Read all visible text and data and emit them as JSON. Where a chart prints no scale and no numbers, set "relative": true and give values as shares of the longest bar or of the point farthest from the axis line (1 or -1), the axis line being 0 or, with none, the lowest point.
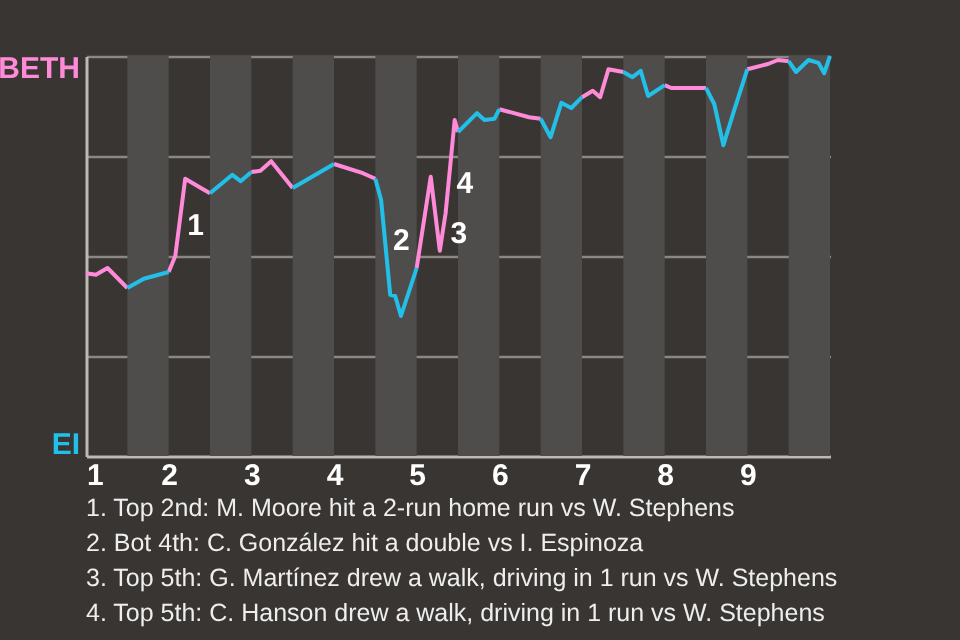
{
  "chart_data": {
    "type": "line",
    "relative": true,
    "x": [
      1.0,
      1.12,
      1.26,
      1.5,
      1.7,
      2.0,
      2.08,
      2.2,
      2.39,
      2.5,
      2.77,
      2.87,
      3.0,
      3.11,
      3.24,
      3.5,
      3.75,
      4.0,
      4.35,
      4.5,
      4.57,
      4.68,
      4.74,
      4.81,
      5.0,
      5.17,
      5.28,
      5.35,
      5.46,
      5.5,
      5.73,
      5.82,
      5.94,
      6.0,
      6.36,
      6.5,
      6.62,
      6.75,
      6.87,
      7.0,
      7.13,
      7.22,
      7.32,
      7.5,
      7.61,
      7.71,
      7.8,
      8.0,
      8.08,
      8.5,
      8.6,
      8.71,
      8.83,
      9.0,
      9.25,
      9.37,
      9.5,
      9.59,
      9.74,
      9.86,
      9.93,
      10.0
    ],
    "series": [
      {
        "color": "#ff8ad8",
        "values": [
          0.457,
          0.453,
          0.47,
          0.42,
          null,
          0.46,
          0.5,
          0.693,
          0.67,
          0.657,
          null,
          null,
          0.71,
          0.713,
          0.737,
          0.67,
          null,
          0.73,
          0.707,
          0.693,
          null,
          null,
          null,
          null,
          0.47,
          0.698,
          0.513,
          0.607,
          0.84,
          0.81,
          null,
          null,
          null,
          0.867,
          0.847,
          0.843,
          null,
          null,
          null,
          0.897,
          0.913,
          0.897,
          0.967,
          0.96,
          null,
          null,
          null,
          0.927,
          0.92,
          0.92,
          null,
          null,
          null,
          0.967,
          0.98,
          0.99,
          0.987,
          null,
          null,
          null,
          null,
          null
        ]
      },
      {
        "color": "#22c0e8",
        "values": [
          null,
          null,
          null,
          0.42,
          0.443,
          0.46,
          null,
          null,
          null,
          0.657,
          0.703,
          0.687,
          0.71,
          null,
          null,
          0.67,
          0.7,
          0.73,
          null,
          0.693,
          0.64,
          0.403,
          0.4,
          0.35,
          0.47,
          null,
          null,
          null,
          null,
          0.81,
          0.857,
          0.84,
          0.843,
          0.867,
          null,
          0.843,
          0.797,
          0.883,
          0.87,
          0.897,
          null,
          null,
          null,
          0.96,
          0.947,
          0.963,
          0.9,
          0.927,
          null,
          0.92,
          0.88,
          0.777,
          0.857,
          0.967,
          null,
          null,
          0.987,
          0.96,
          0.99,
          0.983,
          0.957,
          1
        ]
      }
    ],
    "xlim": [
      1,
      10
    ],
    "xticks": [
      1,
      2,
      3,
      4,
      5,
      6,
      7,
      8,
      9
    ],
    "grid": "y",
    "bands": [
      {
        "axis": "x",
        "from": 1.5,
        "to": 2,
        "color": "#4f4d4b"
      },
      {
        "axis": "x",
        "from": 2.5,
        "to": 3,
        "color": "#4f4d4b"
      },
      {
        "axis": "x",
        "from": 3.5,
        "to": 4,
        "color": "#4f4d4b"
      },
      {
        "axis": "x",
        "from": 4.5,
        "to": 5,
        "color": "#4f4d4b"
      },
      {
        "axis": "x",
        "from": 5.5,
        "to": 6,
        "color": "#4f4d4b"
      },
      {
        "axis": "x",
        "from": 6.5,
        "to": 7,
        "color": "#4f4d4b"
      },
      {
        "axis": "x",
        "from": 7.5,
        "to": 8,
        "color": "#4f4d4b"
      },
      {
        "axis": "x",
        "from": 8.5,
        "to": 9,
        "color": "#4f4d4b"
      },
      {
        "axis": "x",
        "from": 9.5,
        "to": 10,
        "color": "#4f4d4b"
      }
    ],
    "annotations": [
      "BETH",
      "EI",
      {
        "text": "1",
        "x": 2.128,
        "y": 0.577
      },
      {
        "text": "2",
        "x": 4.616,
        "y": 0.54
      },
      {
        "text": "3",
        "x": 5.313,
        "y": 0.557
      },
      {
        "text": "4",
        "x": 5.385,
        "y": 0.682
      },
      "1. Top 2nd: M. Moore hit a 2-run home run vs W. Stephens",
      "2. Bot 4th: C. González hit a double vs I. Espinoza",
      "3. Top 5th: G. Martínez drew a walk, driving in 1 run vs W. Stephens",
      "4. Top 5th: C. Hanson drew a walk, driving in 1 run vs W. Stephens"
    ]
  }
}
